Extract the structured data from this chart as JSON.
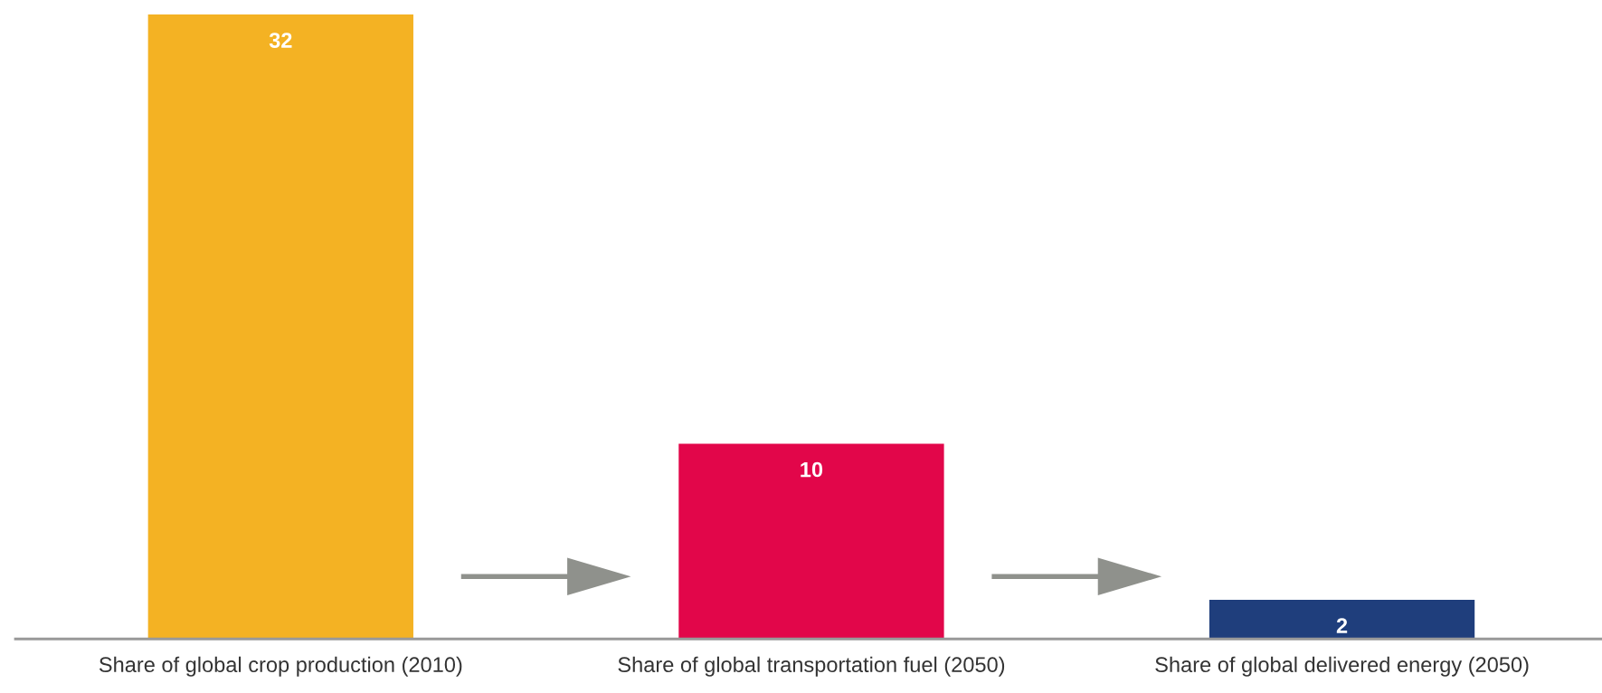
{
  "chart_data": {
    "type": "bar",
    "categories": [
      "Share of global crop production (2010)",
      "Share of global transportation fuel (2050)",
      "Share of global delivered energy (2050)"
    ],
    "values": [
      32,
      10,
      2
    ],
    "colors": [
      "#f4b223",
      "#e2064a",
      "#1f3e7c"
    ],
    "data_labels": true
  }
}
